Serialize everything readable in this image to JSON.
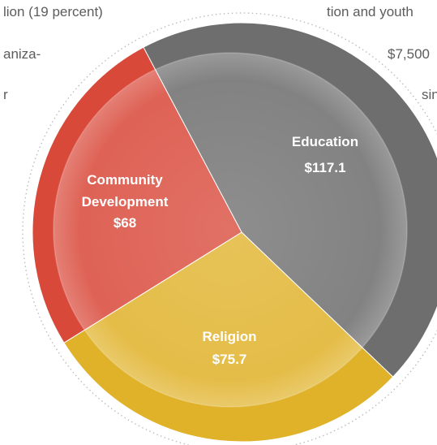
{
  "background_text": [
    "lion (19 percent)",
    "tion and youth",
    "aniza-",
    "$7,500",
    "r",
    "sin"
  ],
  "chart_data": {
    "type": "pie",
    "title": "",
    "slices": [
      {
        "name": "Education",
        "value_label": "$117.1",
        "value": 117.1,
        "color": "#6e6e6e"
      },
      {
        "name": "Religion",
        "value_label": "$75.7",
        "value": 75.7,
        "color": "#e0b22a"
      },
      {
        "name": "Community Development",
        "value_label": "$68",
        "value": 68,
        "color": "#d9493a"
      }
    ],
    "label_color": "#ffffff"
  }
}
